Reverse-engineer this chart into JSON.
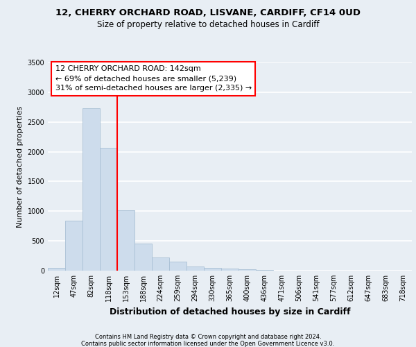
{
  "title1": "12, CHERRY ORCHARD ROAD, LISVANE, CARDIFF, CF14 0UD",
  "title2": "Size of property relative to detached houses in Cardiff",
  "xlabel": "Distribution of detached houses by size in Cardiff",
  "ylabel": "Number of detached properties",
  "bin_labels": [
    "12sqm",
    "47sqm",
    "82sqm",
    "118sqm",
    "153sqm",
    "188sqm",
    "224sqm",
    "259sqm",
    "294sqm",
    "330sqm",
    "365sqm",
    "400sqm",
    "436sqm",
    "471sqm",
    "506sqm",
    "541sqm",
    "577sqm",
    "612sqm",
    "647sqm",
    "683sqm",
    "718sqm"
  ],
  "bar_values": [
    50,
    840,
    2730,
    2060,
    1010,
    450,
    220,
    150,
    75,
    45,
    30,
    20,
    10,
    5,
    3,
    2,
    1,
    1,
    0,
    0,
    0
  ],
  "bar_color": "#cddcec",
  "bar_edgecolor": "#a8bfd4",
  "annotation_text1": "12 CHERRY ORCHARD ROAD: 142sqm",
  "annotation_text2": "← 69% of detached houses are smaller (5,239)",
  "annotation_text3": "31% of semi-detached houses are larger (2,335) →",
  "annotation_box_color": "white",
  "annotation_box_edgecolor": "red",
  "line_color": "red",
  "ylim": [
    0,
    3500
  ],
  "yticks": [
    0,
    500,
    1000,
    1500,
    2000,
    2500,
    3000,
    3500
  ],
  "footer1": "Contains HM Land Registry data © Crown copyright and database right 2024.",
  "footer2": "Contains public sector information licensed under the Open Government Licence v3.0.",
  "bg_color": "#e8eef4",
  "grid_color": "white",
  "title1_fontsize": 9.5,
  "title2_fontsize": 8.5,
  "xlabel_fontsize": 9,
  "ylabel_fontsize": 8,
  "annotation_fontsize": 8,
  "tick_fontsize": 7,
  "footer_fontsize": 6
}
